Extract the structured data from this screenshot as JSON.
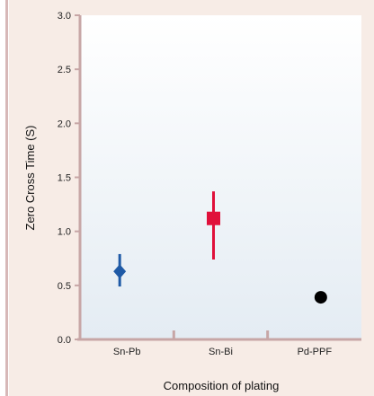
{
  "chart_data": {
    "type": "scatter",
    "xlabel": "Composition of plating",
    "ylabel": "Zero Cross Time (S)",
    "ylim": [
      0.0,
      3.0
    ],
    "yticks": [
      "0.0",
      "0.5",
      "1.0",
      "1.5",
      "2.0",
      "2.5",
      "3.0"
    ],
    "categories": [
      "Sn-Pb",
      "Sn-Bi",
      "Pd-PPF"
    ],
    "points": [
      {
        "category": "Sn-Pb",
        "value": 0.63,
        "low": 0.49,
        "high": 0.79,
        "marker": "diamond",
        "color": "#1f5aa6"
      },
      {
        "category": "Sn-Bi",
        "value": 1.12,
        "low": 0.74,
        "high": 1.37,
        "marker": "square",
        "color": "#e0103a"
      },
      {
        "category": "Pd-PPF",
        "value": 0.39,
        "marker": "circle",
        "color": "#000000"
      }
    ],
    "grid": false
  },
  "colors": {
    "background": "#f7ece6",
    "plot_top": "#ffffff",
    "plot_bottom": "#e4ecf3",
    "axis": "#c7a6a6"
  }
}
